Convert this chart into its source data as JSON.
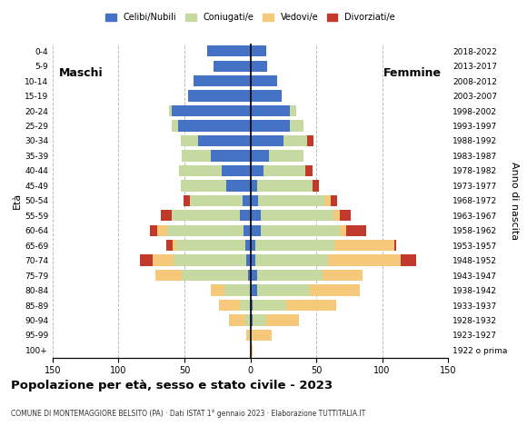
{
  "age_groups": [
    "100+",
    "95-99",
    "90-94",
    "85-89",
    "80-84",
    "75-79",
    "70-74",
    "65-69",
    "60-64",
    "55-59",
    "50-54",
    "45-49",
    "40-44",
    "35-39",
    "30-34",
    "25-29",
    "20-24",
    "15-19",
    "10-14",
    "5-9",
    "0-4"
  ],
  "birth_years": [
    "1922 o prima",
    "1923-1927",
    "1928-1932",
    "1933-1937",
    "1938-1942",
    "1943-1947",
    "1948-1952",
    "1953-1957",
    "1958-1962",
    "1963-1967",
    "1968-1972",
    "1973-1977",
    "1978-1982",
    "1983-1987",
    "1988-1992",
    "1993-1997",
    "1998-2002",
    "2003-2007",
    "2008-2012",
    "2013-2017",
    "2018-2022"
  ],
  "males": {
    "celibi": [
      0,
      0,
      0,
      0,
      0,
      2,
      3,
      4,
      5,
      8,
      6,
      18,
      22,
      30,
      40,
      55,
      60,
      47,
      43,
      28,
      33
    ],
    "coniugati": [
      0,
      1,
      4,
      8,
      20,
      50,
      55,
      52,
      58,
      52,
      40,
      35,
      32,
      22,
      13,
      5,
      2,
      0,
      0,
      0,
      0
    ],
    "vedovi": [
      0,
      2,
      12,
      16,
      10,
      20,
      16,
      3,
      8,
      0,
      0,
      0,
      0,
      0,
      0,
      0,
      0,
      0,
      0,
      0,
      0
    ],
    "divorziati": [
      0,
      0,
      0,
      0,
      0,
      0,
      10,
      5,
      5,
      8,
      5,
      0,
      0,
      0,
      0,
      0,
      0,
      0,
      0,
      0,
      0
    ]
  },
  "females": {
    "nubili": [
      0,
      0,
      2,
      2,
      5,
      5,
      4,
      4,
      8,
      8,
      6,
      5,
      10,
      14,
      25,
      30,
      30,
      24,
      20,
      13,
      12
    ],
    "coniugate": [
      0,
      0,
      10,
      25,
      40,
      50,
      55,
      60,
      60,
      55,
      50,
      42,
      32,
      26,
      18,
      10,
      5,
      0,
      0,
      0,
      0
    ],
    "vedove": [
      2,
      16,
      25,
      38,
      38,
      30,
      55,
      45,
      5,
      5,
      5,
      0,
      0,
      0,
      0,
      0,
      0,
      0,
      0,
      0,
      0
    ],
    "divorziate": [
      0,
      0,
      0,
      0,
      0,
      0,
      12,
      2,
      15,
      8,
      5,
      5,
      5,
      0,
      5,
      0,
      0,
      0,
      0,
      0,
      0
    ]
  },
  "colors": {
    "celibi": "#4472c4",
    "coniugati": "#c5d9a0",
    "vedovi": "#f5c87a",
    "divorziati": "#c0392b"
  },
  "xlim": 150,
  "title": "Popolazione per età, sesso e stato civile - 2023",
  "subtitle": "COMUNE DI MONTEMAGGIORE BELSITO (PA) · Dati ISTAT 1° gennaio 2023 · Elaborazione TUTTITALIA.IT",
  "xlabel_left": "Età",
  "xlabel_right": "Anno di nascita",
  "label_maschi": "Maschi",
  "label_femmine": "Femmine",
  "legend_labels": [
    "Celibi/Nubili",
    "Coniugati/e",
    "Vedovi/e",
    "Divorziati/e"
  ]
}
